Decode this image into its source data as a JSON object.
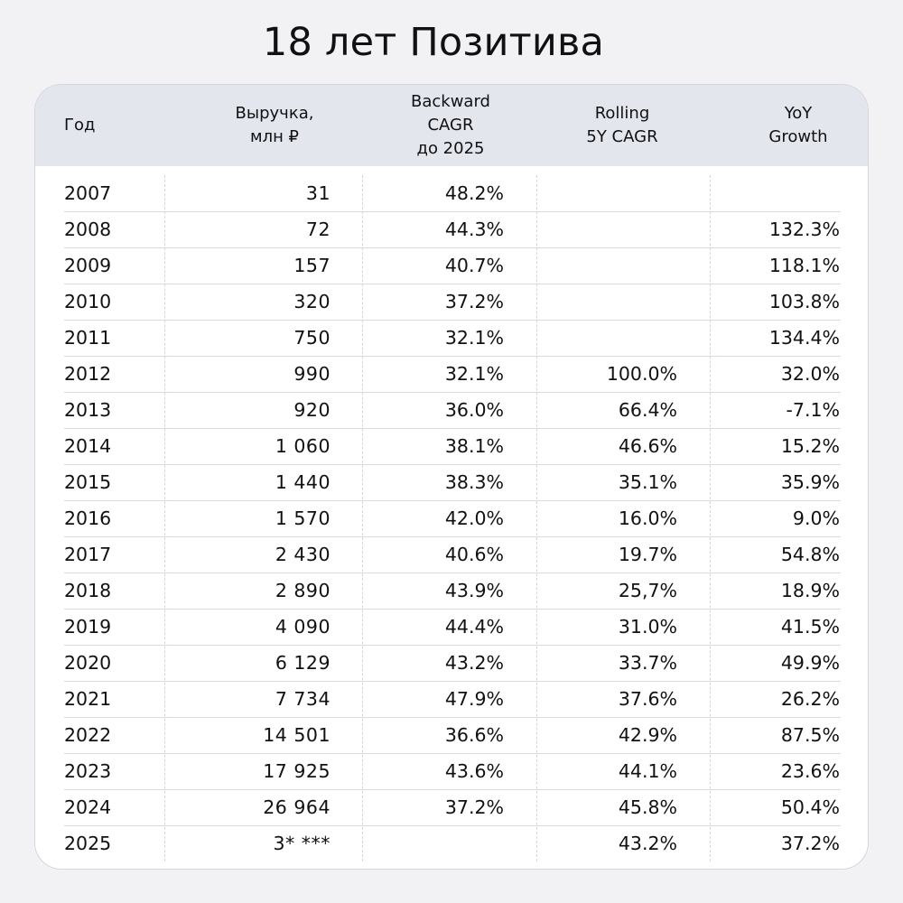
{
  "title": "18 лет Позитива",
  "headers": {
    "year": "Год",
    "revenue": [
      "Выручка,",
      "млн ₽"
    ],
    "backward_cagr": [
      "Backward",
      "CAGR",
      "до 2025"
    ],
    "rolling_cagr": [
      "Rolling",
      "5Y CAGR"
    ],
    "yoy": [
      "YoY",
      "Growth"
    ]
  },
  "rows": [
    {
      "year": "2007",
      "revenue": "31",
      "backward": "48.2%",
      "rolling": "",
      "yoy": ""
    },
    {
      "year": "2008",
      "revenue": "72",
      "backward": "44.3%",
      "rolling": "",
      "yoy": "132.3%"
    },
    {
      "year": "2009",
      "revenue": "157",
      "backward": "40.7%",
      "rolling": "",
      "yoy": "118.1%"
    },
    {
      "year": "2010",
      "revenue": "320",
      "backward": "37.2%",
      "rolling": "",
      "yoy": "103.8%"
    },
    {
      "year": "2011",
      "revenue": "750",
      "backward": "32.1%",
      "rolling": "",
      "yoy": "134.4%"
    },
    {
      "year": "2012",
      "revenue": "990",
      "backward": "32.1%",
      "rolling": "100.0%",
      "yoy": "32.0%"
    },
    {
      "year": "2013",
      "revenue": "920",
      "backward": "36.0%",
      "rolling": "66.4%",
      "yoy": "-7.1%"
    },
    {
      "year": "2014",
      "revenue": "1 060",
      "backward": "38.1%",
      "rolling": "46.6%",
      "yoy": "15.2%"
    },
    {
      "year": "2015",
      "revenue": "1 440",
      "backward": "38.3%",
      "rolling": "35.1%",
      "yoy": "35.9%"
    },
    {
      "year": "2016",
      "revenue": "1 570",
      "backward": "42.0%",
      "rolling": "16.0%",
      "yoy": "9.0%"
    },
    {
      "year": "2017",
      "revenue": "2 430",
      "backward": "40.6%",
      "rolling": "19.7%",
      "yoy": "54.8%"
    },
    {
      "year": "2018",
      "revenue": "2 890",
      "backward": "43.9%",
      "rolling": "25,7%",
      "yoy": "18.9%"
    },
    {
      "year": "2019",
      "revenue": "4 090",
      "backward": "44.4%",
      "rolling": "31.0%",
      "yoy": "41.5%"
    },
    {
      "year": "2020",
      "revenue": "6 129",
      "backward": "43.2%",
      "rolling": "33.7%",
      "yoy": "49.9%"
    },
    {
      "year": "2021",
      "revenue": "7 734",
      "backward": "47.9%",
      "rolling": "37.6%",
      "yoy": "26.2%"
    },
    {
      "year": "2022",
      "revenue": "14 501",
      "backward": "36.6%",
      "rolling": "42.9%",
      "yoy": "87.5%"
    },
    {
      "year": "2023",
      "revenue": "17 925",
      "backward": "43.6%",
      "rolling": "44.1%",
      "yoy": "23.6%"
    },
    {
      "year": "2024",
      "revenue": "26 964",
      "backward": "37.2%",
      "rolling": "45.8%",
      "yoy": "50.4%"
    },
    {
      "year": "2025",
      "revenue": "3* ***",
      "backward": "",
      "rolling": "43.2%",
      "yoy": "37.2%"
    }
  ],
  "colors": {
    "page_background": "#f2f2f4",
    "card_background": "#ffffff",
    "header_background": "#e4e6ee",
    "text": "#111111",
    "divider": "#d9dbe0"
  }
}
